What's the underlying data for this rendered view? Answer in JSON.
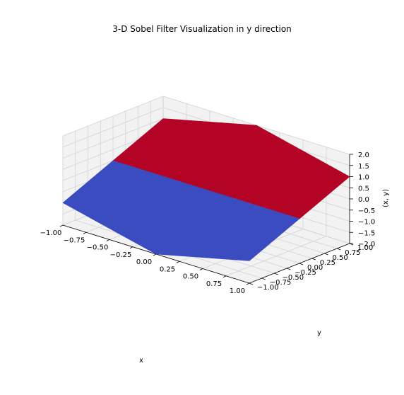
{
  "chart_data": {
    "type": "surface3d",
    "title": "3-D Sobel Filter Visualization in y direction",
    "xlabel": "x",
    "ylabel": "y",
    "zlabel": "(x, y)",
    "xlim": [
      -1,
      1
    ],
    "ylim": [
      -1,
      1
    ],
    "zlim": [
      -2,
      2
    ],
    "x_ticks": [
      "−1.00",
      "−0.75",
      "−0.50",
      "−0.25",
      "0.00",
      "0.25",
      "0.50",
      "0.75",
      "1.00"
    ],
    "y_ticks": [
      "−1.00",
      "−0.75",
      "−0.50",
      "−0.25",
      "0.00",
      "0.25",
      "0.50",
      "0.75",
      "1.00"
    ],
    "z_ticks": [
      "−2.0",
      "−1.5",
      "−1.0",
      "−0.5",
      "0.0",
      "0.5",
      "1.0",
      "1.5",
      "2.0"
    ],
    "x": [
      -1,
      0,
      1
    ],
    "y": [
      -1,
      0,
      1
    ],
    "z": [
      [
        -1,
        -2,
        -1
      ],
      [
        0,
        0,
        0
      ],
      [
        1,
        2,
        1
      ]
    ],
    "colormap": "coolwarm",
    "colors": {
      "positive": "#b40426",
      "negative": "#3b4cc0",
      "pane": "#f2f2f2",
      "grid": "#d2d2d2"
    },
    "grid": true
  }
}
